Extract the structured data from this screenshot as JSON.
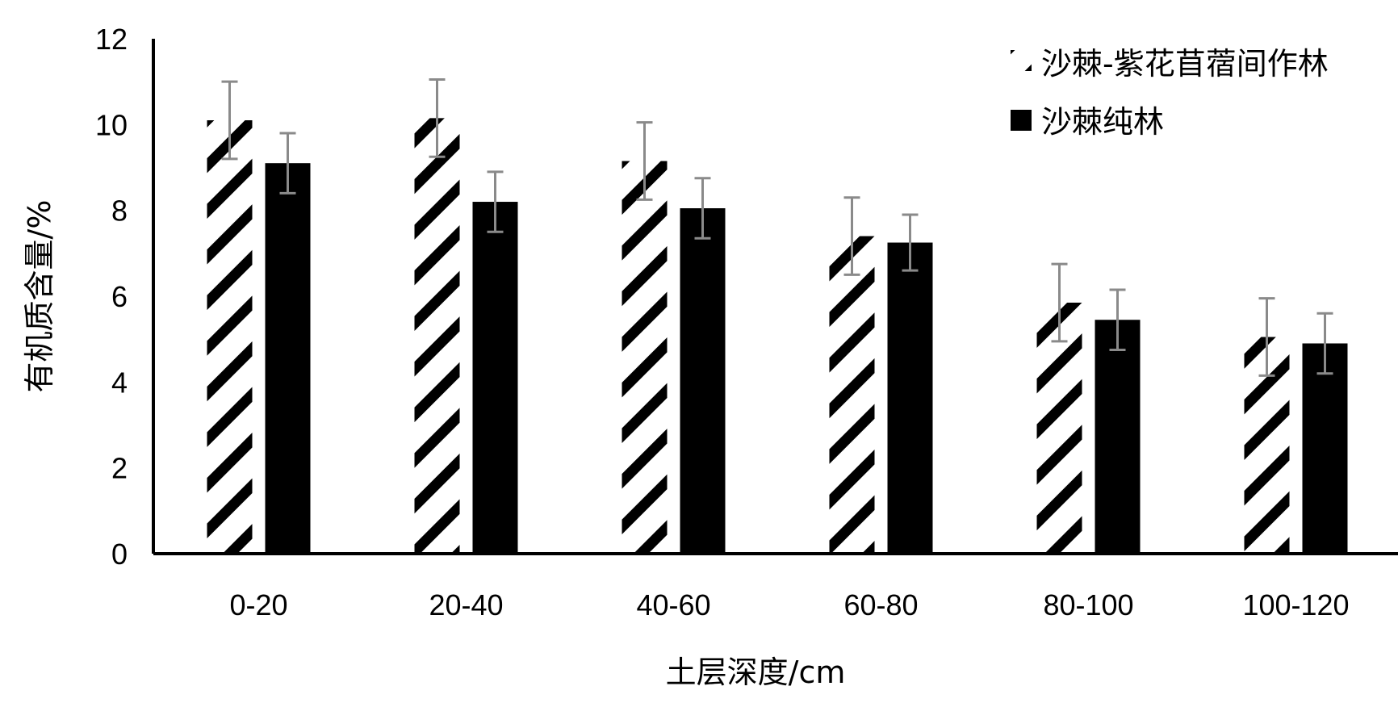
{
  "chart_data": {
    "type": "bar",
    "title": "",
    "xlabel": "土层深度/cm",
    "ylabel": "有机质含量/%",
    "categories": [
      "0-20",
      "20-40",
      "40-60",
      "60-80",
      "80-100",
      "100-120"
    ],
    "yticks": [
      "0",
      "2",
      "4",
      "6",
      "8",
      "10",
      "12"
    ],
    "ylim": [
      0,
      12
    ],
    "grid": false,
    "legend_position": "top-right",
    "series": [
      {
        "name": "沙棘-紫花苜蓿间作林",
        "pattern": "diagonal-hatch",
        "color": "#000000",
        "values": [
          10.1,
          10.15,
          9.15,
          7.4,
          5.85,
          5.05
        ],
        "errors": [
          0.9,
          0.9,
          0.9,
          0.9,
          0.9,
          0.9
        ]
      },
      {
        "name": "沙棘纯林",
        "pattern": "solid",
        "color": "#000000",
        "values": [
          9.1,
          8.2,
          8.05,
          7.25,
          5.45,
          4.9
        ],
        "errors": [
          0.7,
          0.7,
          0.7,
          0.65,
          0.7,
          0.7
        ]
      }
    ]
  }
}
